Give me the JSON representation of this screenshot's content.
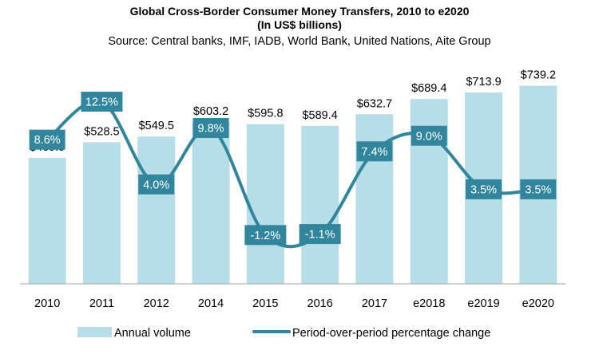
{
  "chart_data": {
    "type": "bar",
    "title": "Global Cross-Border  Consumer Money Transfers,  2010 to e2020",
    "title_line2": "(In US$ billions)",
    "subtitle": "Source:  Central banks, IMF, IADB, World Bank, United Nations, Aite Group",
    "categories": [
      "2010",
      "2011",
      "2012",
      "2014",
      "2015",
      "2016",
      "2017",
      "e2018",
      "e2019",
      "e2020"
    ],
    "series": [
      {
        "name": "Annual volume",
        "type": "bar",
        "values": [
          469.9,
          528.5,
          549.5,
          603.2,
          595.8,
          589.4,
          632.7,
          689.4,
          713.9,
          739.2
        ],
        "labels": [
          "$469.9",
          "$528.5",
          "$549.5",
          "$603.2",
          "$595.8",
          "$589.4",
          "$632.7",
          "$689.4",
          "$713.9",
          "$739.2"
        ]
      },
      {
        "name": "Period-over-period percentage change",
        "type": "line",
        "values": [
          8.6,
          12.5,
          4.0,
          9.8,
          -1.2,
          -1.1,
          7.4,
          9.0,
          3.5,
          3.5
        ],
        "labels": [
          "8.6%",
          "12.5%",
          "4.0%",
          "9.8%",
          "-1.2%",
          "-1.1%",
          "7.4%",
          "9.0%",
          "3.5%",
          "3.5%"
        ]
      }
    ],
    "ylim": [
      0,
      800
    ],
    "y2lim": [
      -4,
      15
    ],
    "grid": false,
    "legend_position": "bottom",
    "colors": {
      "bar": "#b7dde8",
      "line": "#31859c",
      "label_box": "#31859c",
      "axis": "#a6a6a6"
    }
  }
}
